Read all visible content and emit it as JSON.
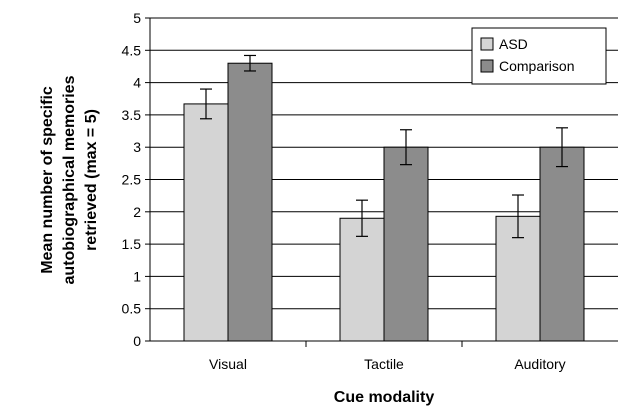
{
  "chart_data": {
    "type": "bar",
    "title": "",
    "xlabel": "Cue modality",
    "ylabel_lines": [
      "Mean number of specific",
      "autobiographical memories",
      "retrieved (max = 5)"
    ],
    "categories": [
      "Visual",
      "Tactile",
      "Auditory"
    ],
    "ylim": [
      0,
      5
    ],
    "yticks": [
      "0",
      "0.5",
      "1",
      "1.5",
      "2",
      "2.5",
      "3",
      "3.5",
      "4",
      "4.5",
      "5"
    ],
    "grid": "horizontal",
    "legend_position": "top-right",
    "series": [
      {
        "name": "ASD",
        "color": "#d4d4d4",
        "values": [
          3.67,
          1.9,
          1.93
        ],
        "error": [
          0.23,
          0.28,
          0.33
        ]
      },
      {
        "name": "Comparison",
        "color": "#8c8c8c",
        "values": [
          4.3,
          3.0,
          3.0
        ],
        "error": [
          0.12,
          0.27,
          0.3
        ]
      }
    ]
  }
}
